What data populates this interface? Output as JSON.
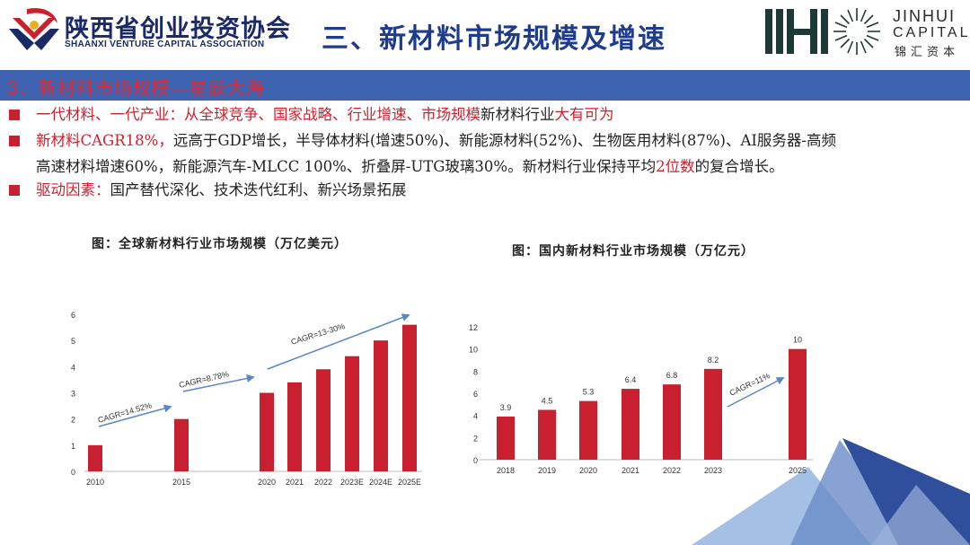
{
  "header": {
    "org_cn": "陕西省创业投资协会",
    "org_en": "SHAANXI VENTURE CAPITAL ASSOCIATION",
    "title": "三、新材料市场规模及增速",
    "brand_en1": "JINHUI",
    "brand_en2": "CAPITAL",
    "brand_cn": "锦汇资本"
  },
  "section": {
    "title": "3、新材料市场规模—星辰大海"
  },
  "bullets": [
    {
      "parts": [
        {
          "text": "一代材料、一代产业：从全球竞争、国家战略、行业增速、市场规模",
          "red": true
        },
        {
          "text": "新材料行业",
          "red": false
        },
        {
          "text": "大有可为",
          "red": true
        }
      ]
    },
    {
      "parts": [
        {
          "text": "新材料CAGR18%，",
          "red": true
        },
        {
          "text": "远高于GDP增长，半导体材料(增速50%)、新能源材料(52%)、生物医用材料(87%)、AI服务器-高频",
          "red": false
        }
      ],
      "cont": [
        {
          "text": "高速材料增速60%，新能源汽车-MLCC 100%、折叠屏-UTG玻璃30%。新材料行业保持平均",
          "red": false
        },
        {
          "text": "2位数",
          "red": true
        },
        {
          "text": "的复合增长。",
          "red": false
        }
      ]
    },
    {
      "parts": [
        {
          "text": "驱动因素：",
          "red": true
        },
        {
          "text": "国产替代深化、技术迭代红利、新兴场景拓展",
          "red": false
        }
      ]
    }
  ],
  "colors": {
    "bar": "#c8202f",
    "arrow": "#5b87c4",
    "accent_bar": "#3d62b0"
  },
  "chart_data": [
    {
      "type": "bar",
      "title": "图：全球新材料行业市场规模（万亿美元）",
      "categories": [
        "2010",
        "2015",
        "2020",
        "2021",
        "2022",
        "2023E",
        "2024E",
        "2025E"
      ],
      "values": [
        1.0,
        2.0,
        3.0,
        3.4,
        3.9,
        4.4,
        5.0,
        5.6
      ],
      "ylim": [
        0,
        6
      ],
      "yticks": [
        0,
        1,
        2,
        3,
        4,
        5,
        6
      ],
      "annotations": [
        "CAGR=14.52%",
        "CAGR=8.78%",
        "CAGR=13-30%"
      ]
    },
    {
      "type": "bar",
      "title": "图：国内新材料行业市场规模（万亿元）",
      "categories": [
        "2018",
        "2019",
        "2020",
        "2021",
        "2022",
        "2023",
        "2025"
      ],
      "values": [
        3.9,
        4.5,
        5.3,
        6.4,
        6.8,
        8.2,
        10
      ],
      "labels": [
        "3.9",
        "4.5",
        "5.3",
        "6.4",
        "6.8",
        "8.2",
        "10"
      ],
      "ylim": [
        0,
        12
      ],
      "yticks": [
        0,
        2,
        4,
        6,
        8,
        10,
        12
      ],
      "annotations": [
        "CAGR=11%"
      ]
    }
  ]
}
